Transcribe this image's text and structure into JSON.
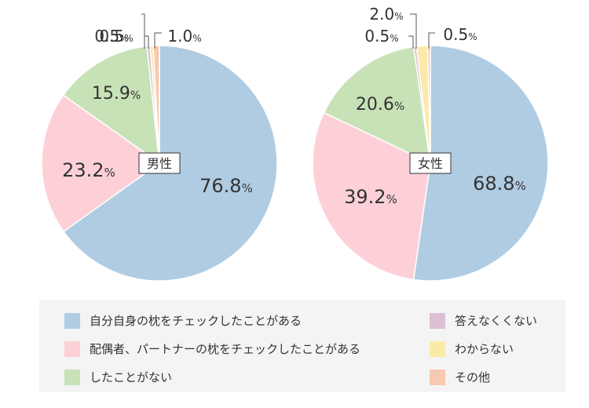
{
  "chart_data": [
    {
      "type": "pie",
      "label": "男性",
      "slices": [
        {
          "category": "自分自身の枕をチェックしたことがある",
          "value": 76.8,
          "label": "76.8"
        },
        {
          "category": "配偶者、パートナーの枕をチェックしたことがある",
          "value": 23.2,
          "label": "23.2"
        },
        {
          "category": "したことがない",
          "value": 15.9,
          "label": "15.9"
        },
        {
          "category": "答えなくくない",
          "value": 0.5,
          "label": "0.5"
        },
        {
          "category": "わからない",
          "value": 0.5,
          "label": "0.5"
        },
        {
          "category": "その他",
          "value": 1.0,
          "label": "1.0"
        }
      ],
      "unit": "%"
    },
    {
      "type": "pie",
      "label": "女性",
      "slices": [
        {
          "category": "自分自身の枕をチェックしたことがある",
          "value": 68.8,
          "label": "68.8"
        },
        {
          "category": "配偶者、パートナーの枕をチェックしたことがある",
          "value": 39.2,
          "label": "39.2"
        },
        {
          "category": "したことがない",
          "value": 20.6,
          "label": "20.6"
        },
        {
          "category": "答えなくくない",
          "value": 0.5,
          "label": "0.5"
        },
        {
          "category": "わからない",
          "value": 2.0,
          "label": "2.0"
        },
        {
          "category": "その他",
          "value": 0.5,
          "label": "0.5"
        }
      ],
      "unit": "%"
    }
  ],
  "legend": [
    {
      "label": "自分自身の枕をチェックしたことがある",
      "color": "#b0cce3"
    },
    {
      "label": "配偶者、パートナーの枕をチェックしたことがある",
      "color": "#fdd0d8"
    },
    {
      "label": "したことがない",
      "color": "#c8e2b7"
    },
    {
      "label": "答えなくくない",
      "color": "#ddbfd4"
    },
    {
      "label": "わからない",
      "color": "#fbeaa7"
    },
    {
      "label": "その他",
      "color": "#f7c9b0"
    }
  ]
}
